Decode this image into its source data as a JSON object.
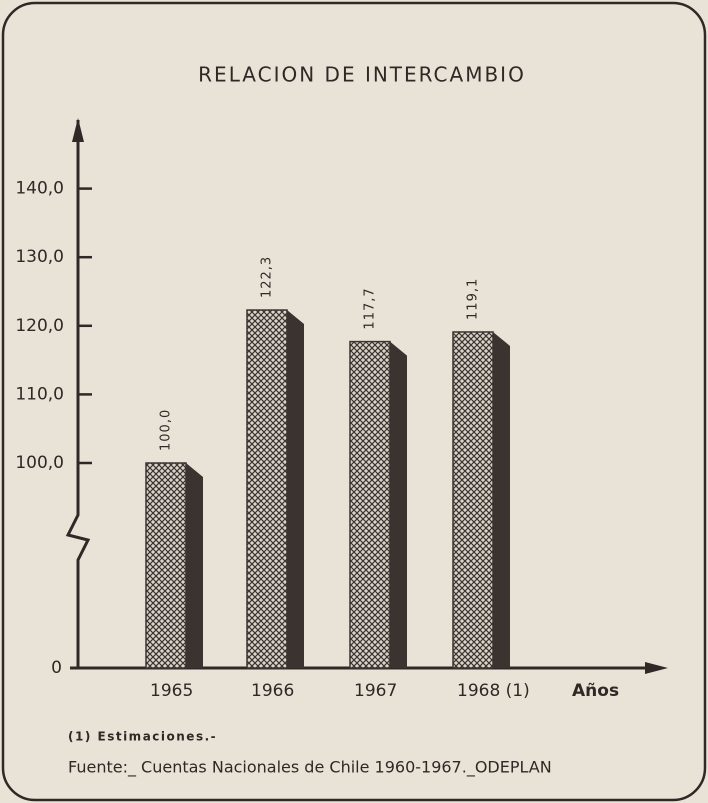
{
  "chart_data": {
    "type": "bar",
    "title": "RELACION DE INTERCAMBIO",
    "categories": [
      "1965",
      "1966",
      "1967",
      "1968 (1)"
    ],
    "values": [
      100.0,
      122.3,
      117.7,
      119.1
    ],
    "value_labels": [
      "100,0",
      "122,3",
      "117,7",
      "119,1"
    ],
    "x_label": "Años",
    "color": "#3a3330",
    "ylim": [
      0,
      150
    ],
    "ybreak": [
      0,
      100
    ],
    "yticks": [
      0,
      {
        "value": 100,
        "label": "100,0"
      },
      {
        "value": 110,
        "label": "110,0"
      },
      {
        "value": 120,
        "label": "120,0"
      },
      {
        "value": 130,
        "label": "130,0"
      },
      {
        "value": 140,
        "label": "140,0"
      }
    ],
    "footnote": "(1) Estimaciones.-",
    "source": "Fuente:_ Cuentas Nacionales de Chile 1960-1967._ODEPLAN"
  }
}
